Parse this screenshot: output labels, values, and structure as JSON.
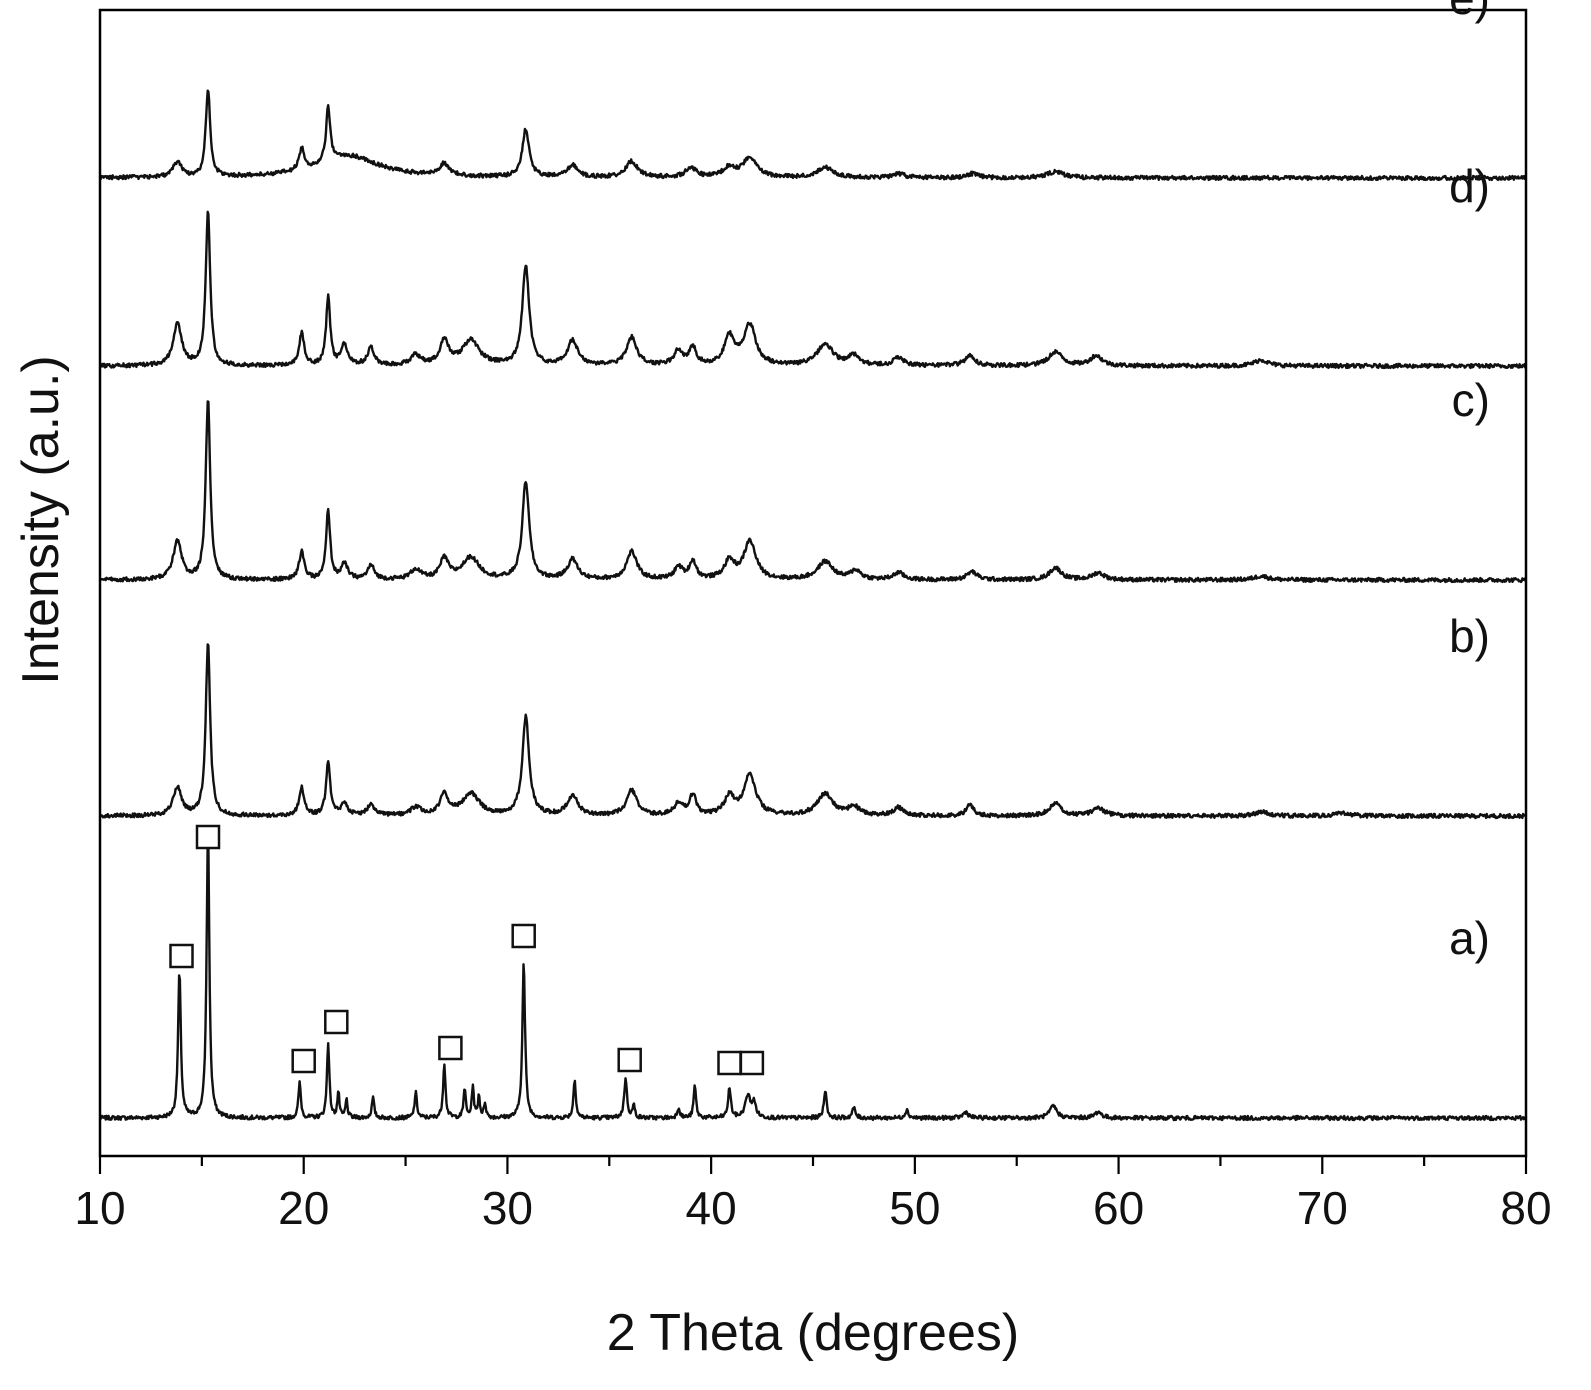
{
  "chart_data": {
    "type": "line",
    "title": "",
    "xlabel": "2 Theta (degrees)",
    "ylabel": "Intensity (a.u.)",
    "xlim": [
      10,
      80
    ],
    "xticks": [
      10,
      20,
      30,
      40,
      50,
      60,
      70,
      80
    ],
    "xtick_labels": [
      "10",
      "20",
      "30",
      "40",
      "50",
      "60",
      "70",
      "80"
    ],
    "y_ticks_shown": false,
    "grid": false,
    "legend": "none",
    "marker_symbol": "□",
    "marker_meaning": "reflections of the crystalline phase in pattern a)",
    "series": [
      {
        "name": "a)",
        "baseline": 0,
        "offset": 0,
        "peaks": [
          {
            "x": 13.9,
            "h": 145,
            "w": 0.08
          },
          {
            "x": 15.3,
            "h": 290,
            "w": 0.08
          },
          {
            "x": 19.8,
            "h": 35,
            "w": 0.07
          },
          {
            "x": 21.2,
            "h": 75,
            "w": 0.07
          },
          {
            "x": 21.7,
            "h": 25,
            "w": 0.06
          },
          {
            "x": 22.1,
            "h": 18,
            "w": 0.06
          },
          {
            "x": 23.4,
            "h": 20,
            "w": 0.07
          },
          {
            "x": 25.5,
            "h": 25,
            "w": 0.07
          },
          {
            "x": 26.9,
            "h": 55,
            "w": 0.07
          },
          {
            "x": 27.9,
            "h": 30,
            "w": 0.06
          },
          {
            "x": 28.3,
            "h": 32,
            "w": 0.06
          },
          {
            "x": 28.6,
            "h": 22,
            "w": 0.06
          },
          {
            "x": 28.9,
            "h": 15,
            "w": 0.06
          },
          {
            "x": 30.8,
            "h": 155,
            "w": 0.08
          },
          {
            "x": 33.3,
            "h": 38,
            "w": 0.07
          },
          {
            "x": 35.8,
            "h": 40,
            "w": 0.08
          },
          {
            "x": 36.2,
            "h": 12,
            "w": 0.07
          },
          {
            "x": 38.4,
            "h": 10,
            "w": 0.08
          },
          {
            "x": 39.2,
            "h": 32,
            "w": 0.07
          },
          {
            "x": 40.9,
            "h": 30,
            "w": 0.08
          },
          {
            "x": 41.8,
            "h": 22,
            "w": 0.15
          },
          {
            "x": 42.1,
            "h": 14,
            "w": 0.12
          },
          {
            "x": 45.6,
            "h": 28,
            "w": 0.08
          },
          {
            "x": 47.0,
            "h": 10,
            "w": 0.09
          },
          {
            "x": 49.6,
            "h": 8,
            "w": 0.1
          },
          {
            "x": 52.5,
            "h": 6,
            "w": 0.15
          },
          {
            "x": 56.8,
            "h": 12,
            "w": 0.2
          },
          {
            "x": 59.0,
            "h": 6,
            "w": 0.2
          }
        ]
      },
      {
        "name": "b)",
        "baseline": 0,
        "offset": 302,
        "peaks": [
          {
            "x": 13.8,
            "h": 28,
            "w": 0.25
          },
          {
            "x": 15.3,
            "h": 172,
            "w": 0.13
          },
          {
            "x": 19.9,
            "h": 28,
            "w": 0.15
          },
          {
            "x": 21.2,
            "h": 55,
            "w": 0.12
          },
          {
            "x": 22.0,
            "h": 12,
            "w": 0.2
          },
          {
            "x": 23.3,
            "h": 12,
            "w": 0.2
          },
          {
            "x": 25.5,
            "h": 8,
            "w": 0.3
          },
          {
            "x": 26.9,
            "h": 20,
            "w": 0.25
          },
          {
            "x": 28.2,
            "h": 22,
            "w": 0.5
          },
          {
            "x": 30.9,
            "h": 98,
            "w": 0.2
          },
          {
            "x": 33.2,
            "h": 20,
            "w": 0.3
          },
          {
            "x": 36.1,
            "h": 25,
            "w": 0.3
          },
          {
            "x": 38.4,
            "h": 12,
            "w": 0.25
          },
          {
            "x": 39.1,
            "h": 20,
            "w": 0.2
          },
          {
            "x": 40.9,
            "h": 18,
            "w": 0.3
          },
          {
            "x": 41.9,
            "h": 40,
            "w": 0.35
          },
          {
            "x": 45.6,
            "h": 22,
            "w": 0.45
          },
          {
            "x": 47.0,
            "h": 9,
            "w": 0.3
          },
          {
            "x": 49.2,
            "h": 8,
            "w": 0.3
          },
          {
            "x": 52.7,
            "h": 12,
            "w": 0.2
          },
          {
            "x": 56.9,
            "h": 12,
            "w": 0.35
          },
          {
            "x": 59.0,
            "h": 8,
            "w": 0.35
          },
          {
            "x": 67.0,
            "h": 4,
            "w": 0.4
          },
          {
            "x": 71.0,
            "h": 3,
            "w": 0.4
          }
        ]
      },
      {
        "name": "c)",
        "baseline": 0,
        "offset": 538,
        "peaks": [
          {
            "x": 13.8,
            "h": 38,
            "w": 0.25
          },
          {
            "x": 15.3,
            "h": 180,
            "w": 0.13
          },
          {
            "x": 19.9,
            "h": 28,
            "w": 0.15
          },
          {
            "x": 21.2,
            "h": 68,
            "w": 0.12
          },
          {
            "x": 22.0,
            "h": 15,
            "w": 0.2
          },
          {
            "x": 23.3,
            "h": 14,
            "w": 0.2
          },
          {
            "x": 25.5,
            "h": 10,
            "w": 0.3
          },
          {
            "x": 26.9,
            "h": 20,
            "w": 0.25
          },
          {
            "x": 28.2,
            "h": 22,
            "w": 0.5
          },
          {
            "x": 30.9,
            "h": 98,
            "w": 0.2
          },
          {
            "x": 33.2,
            "h": 20,
            "w": 0.3
          },
          {
            "x": 36.1,
            "h": 28,
            "w": 0.3
          },
          {
            "x": 38.4,
            "h": 12,
            "w": 0.25
          },
          {
            "x": 39.1,
            "h": 18,
            "w": 0.2
          },
          {
            "x": 40.9,
            "h": 18,
            "w": 0.3
          },
          {
            "x": 41.9,
            "h": 38,
            "w": 0.35
          },
          {
            "x": 45.6,
            "h": 18,
            "w": 0.45
          },
          {
            "x": 47.1,
            "h": 9,
            "w": 0.3
          },
          {
            "x": 49.2,
            "h": 7,
            "w": 0.3
          },
          {
            "x": 52.8,
            "h": 8,
            "w": 0.3
          },
          {
            "x": 56.9,
            "h": 12,
            "w": 0.35
          },
          {
            "x": 59.0,
            "h": 7,
            "w": 0.35
          },
          {
            "x": 67.0,
            "h": 4,
            "w": 0.4
          }
        ]
      },
      {
        "name": "d)",
        "baseline": 0,
        "offset": 752,
        "peaks": [
          {
            "x": 13.8,
            "h": 42,
            "w": 0.25
          },
          {
            "x": 15.3,
            "h": 155,
            "w": 0.13
          },
          {
            "x": 19.9,
            "h": 32,
            "w": 0.15
          },
          {
            "x": 21.2,
            "h": 68,
            "w": 0.12
          },
          {
            "x": 22.0,
            "h": 20,
            "w": 0.2
          },
          {
            "x": 23.3,
            "h": 18,
            "w": 0.2
          },
          {
            "x": 25.5,
            "h": 10,
            "w": 0.3
          },
          {
            "x": 26.9,
            "h": 25,
            "w": 0.25
          },
          {
            "x": 28.2,
            "h": 25,
            "w": 0.5
          },
          {
            "x": 30.9,
            "h": 100,
            "w": 0.2
          },
          {
            "x": 33.2,
            "h": 25,
            "w": 0.3
          },
          {
            "x": 36.1,
            "h": 28,
            "w": 0.3
          },
          {
            "x": 38.4,
            "h": 15,
            "w": 0.25
          },
          {
            "x": 39.1,
            "h": 18,
            "w": 0.2
          },
          {
            "x": 40.9,
            "h": 28,
            "w": 0.3
          },
          {
            "x": 41.9,
            "h": 40,
            "w": 0.35
          },
          {
            "x": 45.6,
            "h": 22,
            "w": 0.45
          },
          {
            "x": 47.0,
            "h": 10,
            "w": 0.3
          },
          {
            "x": 49.2,
            "h": 8,
            "w": 0.3
          },
          {
            "x": 52.7,
            "h": 10,
            "w": 0.3
          },
          {
            "x": 56.9,
            "h": 14,
            "w": 0.4
          },
          {
            "x": 58.9,
            "h": 10,
            "w": 0.35
          },
          {
            "x": 67.0,
            "h": 6,
            "w": 0.4
          }
        ]
      },
      {
        "name": "e)",
        "baseline": 0,
        "offset": 940,
        "peaks": [
          {
            "x": 13.8,
            "h": 15,
            "w": 0.25
          },
          {
            "x": 15.3,
            "h": 88,
            "w": 0.13
          },
          {
            "x": 19.9,
            "h": 22,
            "w": 0.15
          },
          {
            "x": 21.2,
            "h": 55,
            "w": 0.12
          },
          {
            "x": 22.2,
            "h": 22,
            "w": 1.8
          },
          {
            "x": 26.9,
            "h": 12,
            "w": 0.3
          },
          {
            "x": 30.9,
            "h": 48,
            "w": 0.2
          },
          {
            "x": 33.2,
            "h": 12,
            "w": 0.3
          },
          {
            "x": 36.1,
            "h": 16,
            "w": 0.35
          },
          {
            "x": 39.0,
            "h": 10,
            "w": 0.3
          },
          {
            "x": 40.9,
            "h": 10,
            "w": 0.35
          },
          {
            "x": 41.9,
            "h": 20,
            "w": 0.4
          },
          {
            "x": 45.6,
            "h": 10,
            "w": 0.5
          },
          {
            "x": 49.2,
            "h": 4,
            "w": 0.35
          },
          {
            "x": 52.8,
            "h": 4,
            "w": 0.35
          },
          {
            "x": 56.9,
            "h": 6,
            "w": 0.5
          }
        ]
      }
    ],
    "phase_markers": [
      {
        "x": 14.0,
        "y": 162
      },
      {
        "x": 15.3,
        "y": 281
      },
      {
        "x": 20.0,
        "y": 57
      },
      {
        "x": 21.6,
        "y": 96
      },
      {
        "x": 27.2,
        "y": 70
      },
      {
        "x": 30.8,
        "y": 182
      },
      {
        "x": 36.0,
        "y": 58
      },
      {
        "x": 40.9,
        "y": 55
      },
      {
        "x": 42.0,
        "y": 55
      }
    ]
  }
}
